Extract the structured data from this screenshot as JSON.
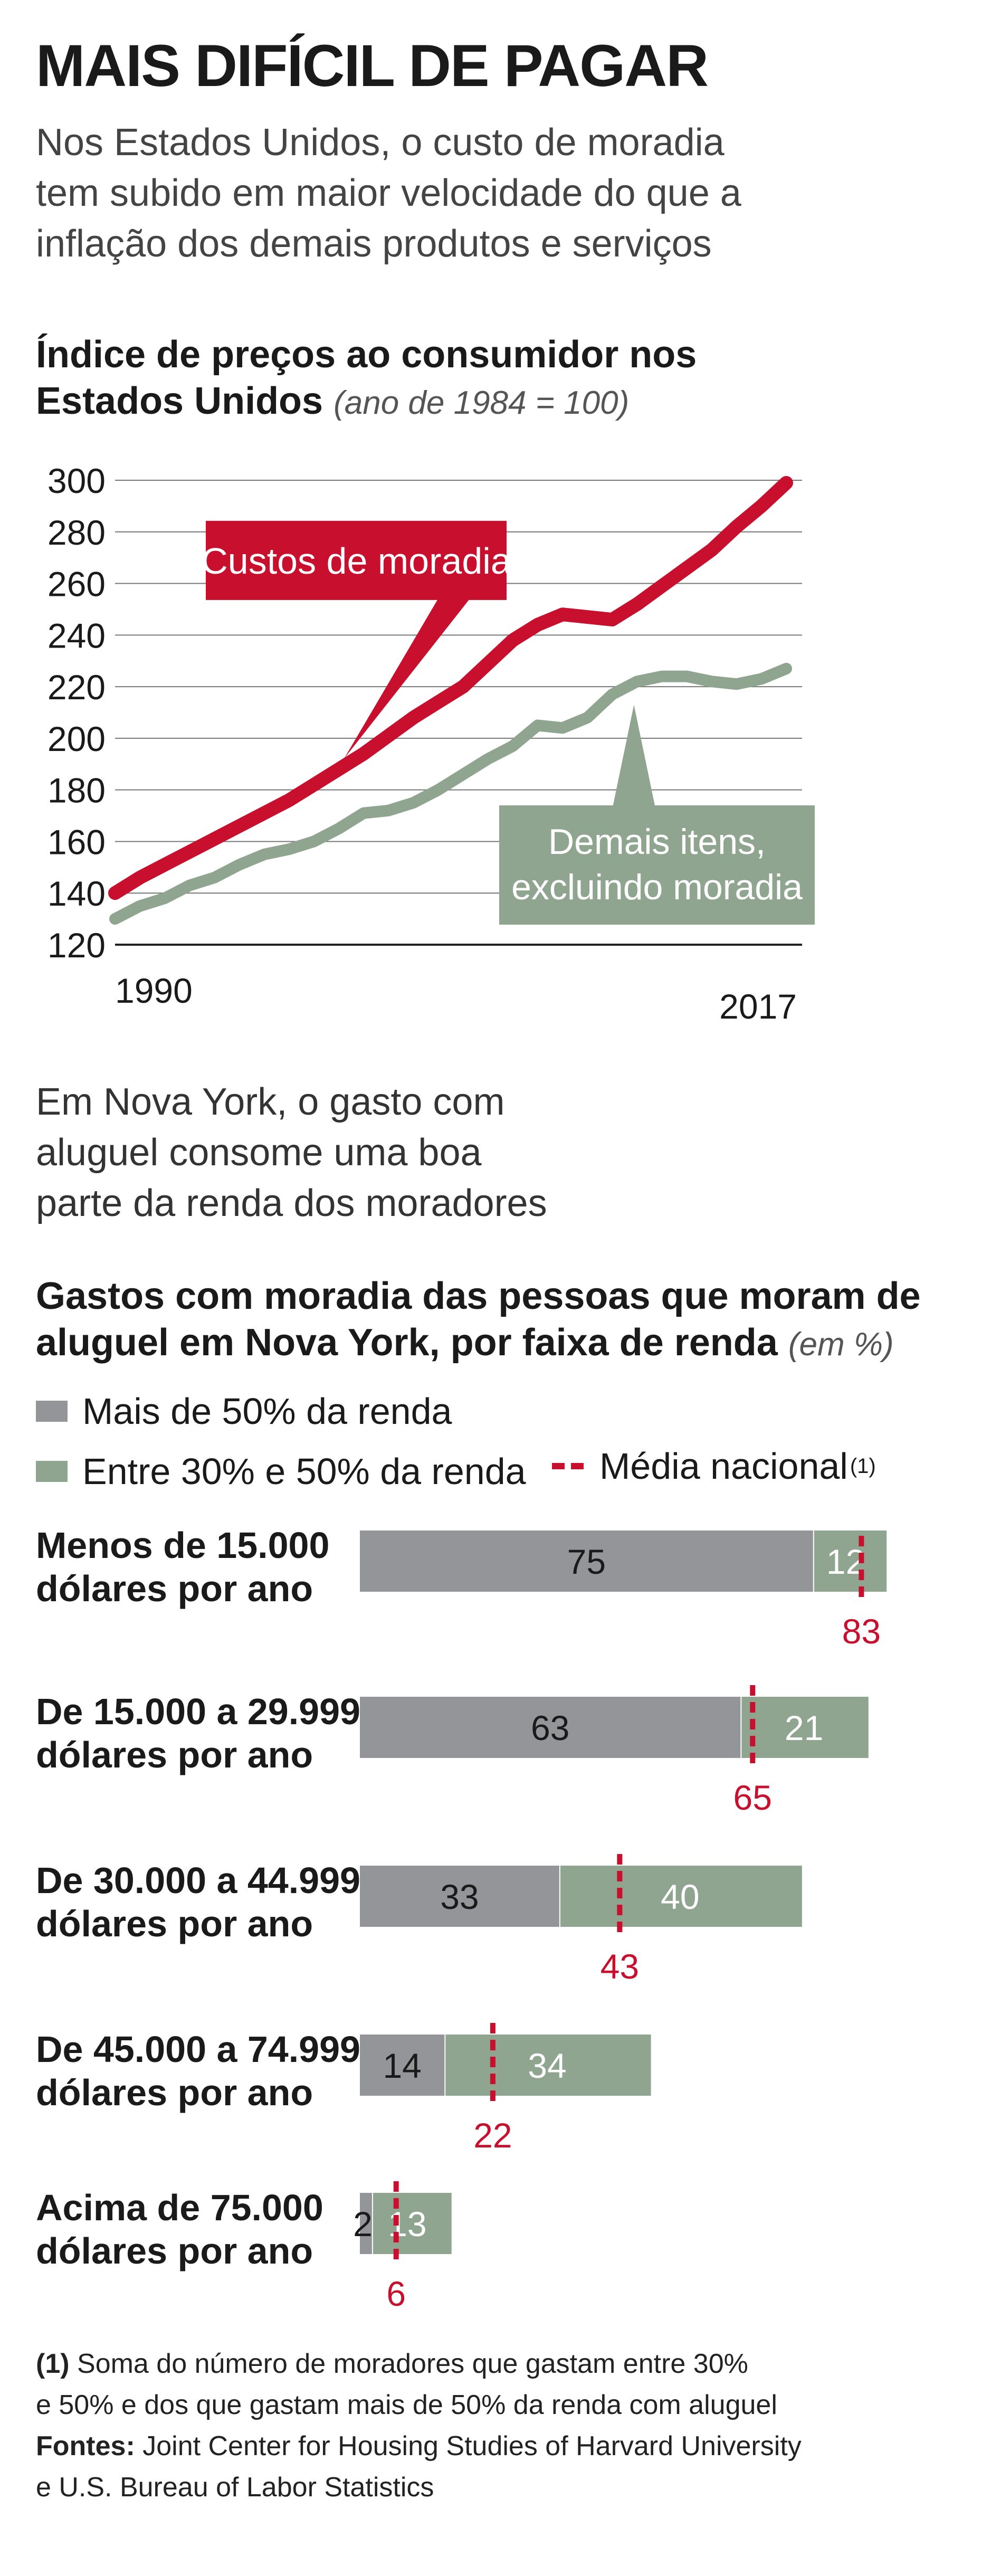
{
  "header": {
    "title": "MAIS DIFÍCIL DE PAGAR",
    "subtitle_lines": [
      "Nos Estados Unidos, o custo de moradia",
      "tem subido em maior velocidade do que a",
      "inflação dos demais produtos e serviços"
    ]
  },
  "colors": {
    "housing": "#c8102e",
    "others": "#8fa58f",
    "over50": "#939598",
    "between": "#8fa58f",
    "average": "#c8102e"
  },
  "chart_data": [
    {
      "type": "line",
      "title_lines": [
        "Índice de preços ao consumidor nos",
        "Estados Unidos"
      ],
      "title_unit": "(ano de 1984 = 100)",
      "xlim": [
        1990,
        2017
      ],
      "ylim": [
        120,
        300
      ],
      "yticks": [
        120,
        140,
        160,
        180,
        200,
        220,
        240,
        260,
        280,
        300
      ],
      "ytick_labels": [
        "120",
        "140",
        "160",
        "180",
        "200",
        "220",
        "240",
        "260",
        "280",
        "300"
      ],
      "xtick_labels": [
        "1990",
        "2017"
      ],
      "grid": true,
      "x": [
        1990,
        1991,
        1992,
        1993,
        1994,
        1995,
        1996,
        1997,
        1998,
        1999,
        2000,
        2001,
        2002,
        2003,
        2004,
        2005,
        2006,
        2007,
        2008,
        2009,
        2010,
        2011,
        2012,
        2013,
        2014,
        2015,
        2016,
        2017
      ],
      "series": [
        {
          "name": "Custos de moradia",
          "label_lines": [
            "Custos de moradia"
          ],
          "values": [
            140,
            146,
            151,
            156,
            161,
            166,
            171,
            176,
            182,
            188,
            194,
            201,
            208,
            214,
            220,
            229,
            238,
            244,
            248,
            247,
            246,
            252,
            259,
            266,
            273,
            282,
            290,
            299
          ]
        },
        {
          "name": "Demais itens, excluindo moradia",
          "label_lines": [
            "Demais itens,",
            "excluindo moradia"
          ],
          "values": [
            130,
            135,
            138,
            143,
            146,
            151,
            155,
            157,
            160,
            165,
            171,
            172,
            175,
            180,
            186,
            192,
            197,
            205,
            204,
            208,
            217,
            222,
            224,
            224,
            222,
            221,
            223,
            227
          ]
        }
      ]
    },
    {
      "type": "bar",
      "stacked": true,
      "title_lines": [
        "Gastos com moradia das pessoas que moram de",
        "aluguel em Nova York, por faixa de renda"
      ],
      "title_unit": "(em %)",
      "categories": [
        [
          "Menos de 15.000",
          "dólares por ano"
        ],
        [
          "De 15.000 a 29.999",
          "dólares por ano"
        ],
        [
          "De 30.000 a 44.999",
          "dólares por ano"
        ],
        [
          "De 45.000 a 74.999",
          "dólares por ano"
        ],
        [
          "Acima de 75.000",
          "dólares por ano"
        ]
      ],
      "series": [
        {
          "name": "Mais de 50% da renda",
          "values": [
            75,
            63,
            33,
            14,
            2
          ]
        },
        {
          "name": "Entre 30% e 50% da renda",
          "values": [
            12,
            21,
            40,
            34,
            13
          ]
        }
      ],
      "reference": {
        "name": "Média nacional",
        "footnote_mark": "(1)",
        "values": [
          83,
          65,
          43,
          22,
          6
        ]
      }
    }
  ],
  "intro2_lines": [
    "Em Nova York, o gasto com",
    "aluguel consome uma boa",
    "parte da renda dos moradores"
  ],
  "notes": {
    "footnote_marker": "(1)",
    "footnote_lines": [
      "Soma do número de moradores que gastam entre 30%",
      "e 50% e dos que gastam mais de 50% da renda com aluguel"
    ],
    "sources_label": "Fontes:",
    "sources_lines": [
      "Joint Center for Housing Studies of Harvard University",
      "e U.S. Bureau of Labor Statistics"
    ]
  }
}
